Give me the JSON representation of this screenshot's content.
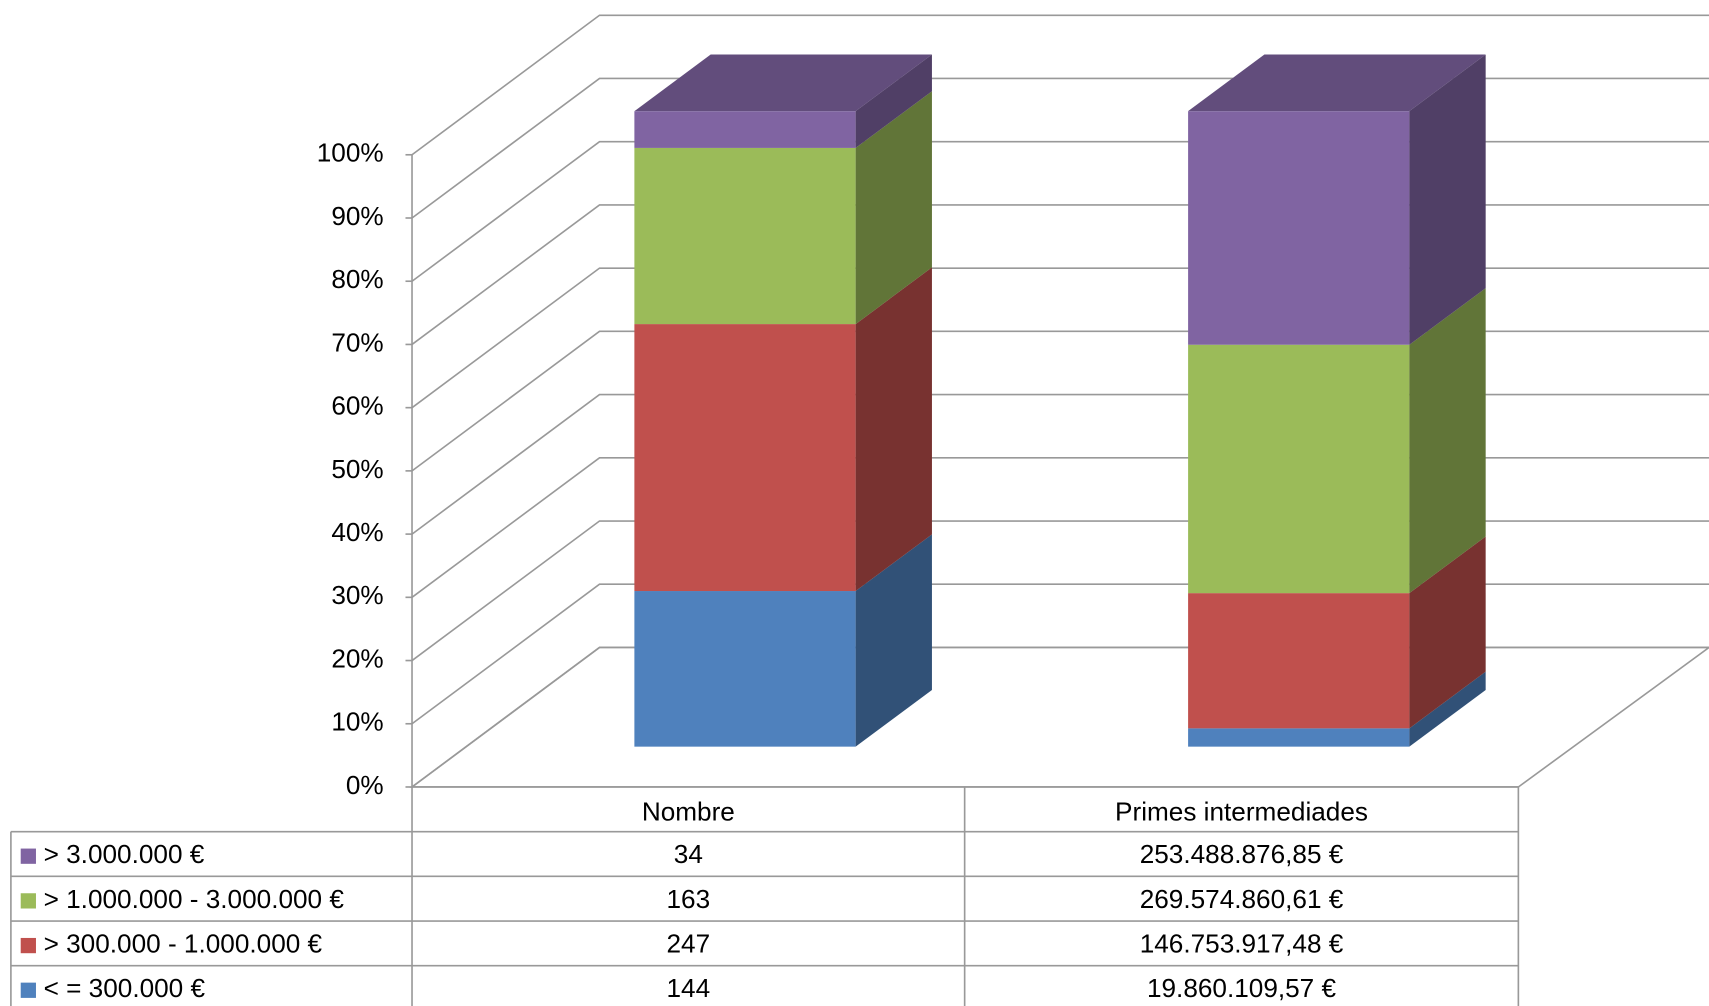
{
  "chart_data": {
    "type": "bar3d",
    "stacking": "percent",
    "categories": [
      "Nombre",
      "Primes intermediades"
    ],
    "series": [
      {
        "name": "< = 300.000 €",
        "color": "#4f81bd",
        "values": [
          144,
          19860109.57
        ],
        "value_labels": [
          "144",
          "19.860.109,57 €"
        ]
      },
      {
        "name": "> 300.000 - 1.000.000 €",
        "color": "#c0504d",
        "values": [
          247,
          146753917.48
        ],
        "value_labels": [
          "247",
          "146.753.917,48 €"
        ]
      },
      {
        "name": "> 1.000.000 - 3.000.000 €",
        "color": "#9bbb59",
        "values": [
          163,
          269574860.61
        ],
        "value_labels": [
          "163",
          "269.574.860,61 €"
        ]
      },
      {
        "name": "> 3.000.000 €",
        "color": "#8064a2",
        "values": [
          34,
          253488876.85
        ],
        "value_labels": [
          "34",
          "253.488.876,85 €"
        ]
      }
    ],
    "ylim": [
      0,
      100
    ],
    "yticks": [
      {
        "value": 0,
        "label": "0%"
      },
      {
        "value": 10,
        "label": "10%"
      },
      {
        "value": 20,
        "label": "20%"
      },
      {
        "value": 30,
        "label": "30%"
      },
      {
        "value": 40,
        "label": "40%"
      },
      {
        "value": 50,
        "label": "50%"
      },
      {
        "value": 60,
        "label": "60%"
      },
      {
        "value": 70,
        "label": "70%"
      },
      {
        "value": 80,
        "label": "80%"
      },
      {
        "value": 90,
        "label": "90%"
      },
      {
        "value": 100,
        "label": "100%"
      }
    ],
    "grid": true,
    "data_table": true
  }
}
